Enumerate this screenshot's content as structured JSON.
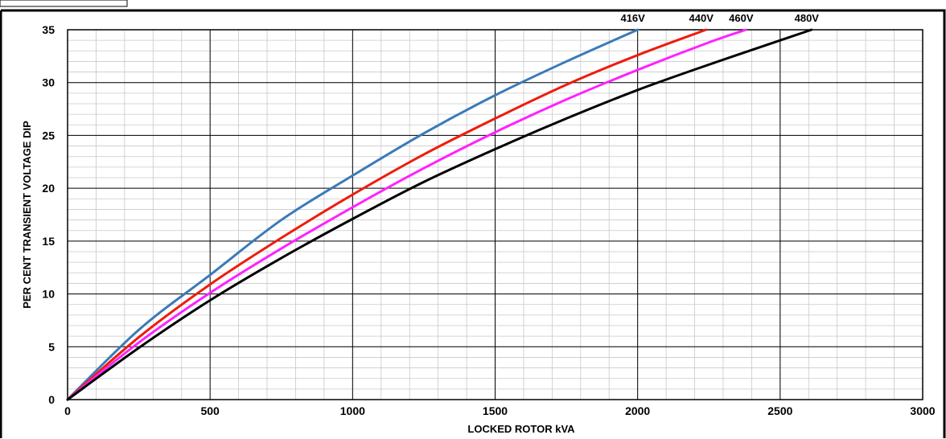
{
  "chart_data": {
    "type": "line",
    "title": "",
    "xlabel": "LOCKED ROTOR kVA",
    "ylabel": "PER CENT TRANSIENT VOLTAGE DIP",
    "xlim": [
      0,
      3000
    ],
    "ylim": [
      0,
      35
    ],
    "x_ticks": [
      "0",
      "500",
      "1000",
      "1500",
      "2000",
      "2500",
      "3000"
    ],
    "y_ticks": [
      "0",
      "5",
      "10",
      "15",
      "20",
      "25",
      "30",
      "35"
    ],
    "grid": "major and minor",
    "legend": "labels above curve ends",
    "series": [
      {
        "name": "416V",
        "color": "#3a7ab8",
        "x": [
          0,
          250,
          500,
          750,
          1000,
          1250,
          1500,
          1750,
          2000
        ],
        "y": [
          0,
          6.6,
          11.8,
          17.0,
          21.2,
          25.2,
          28.8,
          32.0,
          35
        ]
      },
      {
        "name": "440V",
        "color": "#ee1c0c",
        "x": [
          0,
          250,
          500,
          750,
          1000,
          1250,
          1500,
          1750,
          2000,
          2240
        ],
        "y": [
          0,
          5.9,
          10.9,
          15.3,
          19.4,
          23.2,
          26.6,
          29.8,
          32.6,
          35
        ]
      },
      {
        "name": "460V",
        "color": "#ff22ff",
        "x": [
          0,
          250,
          500,
          750,
          1000,
          1250,
          1500,
          1750,
          2000,
          2250,
          2380
        ],
        "y": [
          0,
          5.4,
          10.1,
          14.3,
          18.2,
          21.9,
          25.3,
          28.4,
          31.2,
          33.8,
          35
        ]
      },
      {
        "name": "480V",
        "color": "#000000",
        "x": [
          0,
          250,
          500,
          750,
          1000,
          1250,
          1500,
          1750,
          2000,
          2250,
          2500,
          2610
        ],
        "y": [
          0,
          4.9,
          9.4,
          13.4,
          17.1,
          20.6,
          23.7,
          26.6,
          29.3,
          31.7,
          34.0,
          35
        ]
      }
    ]
  }
}
